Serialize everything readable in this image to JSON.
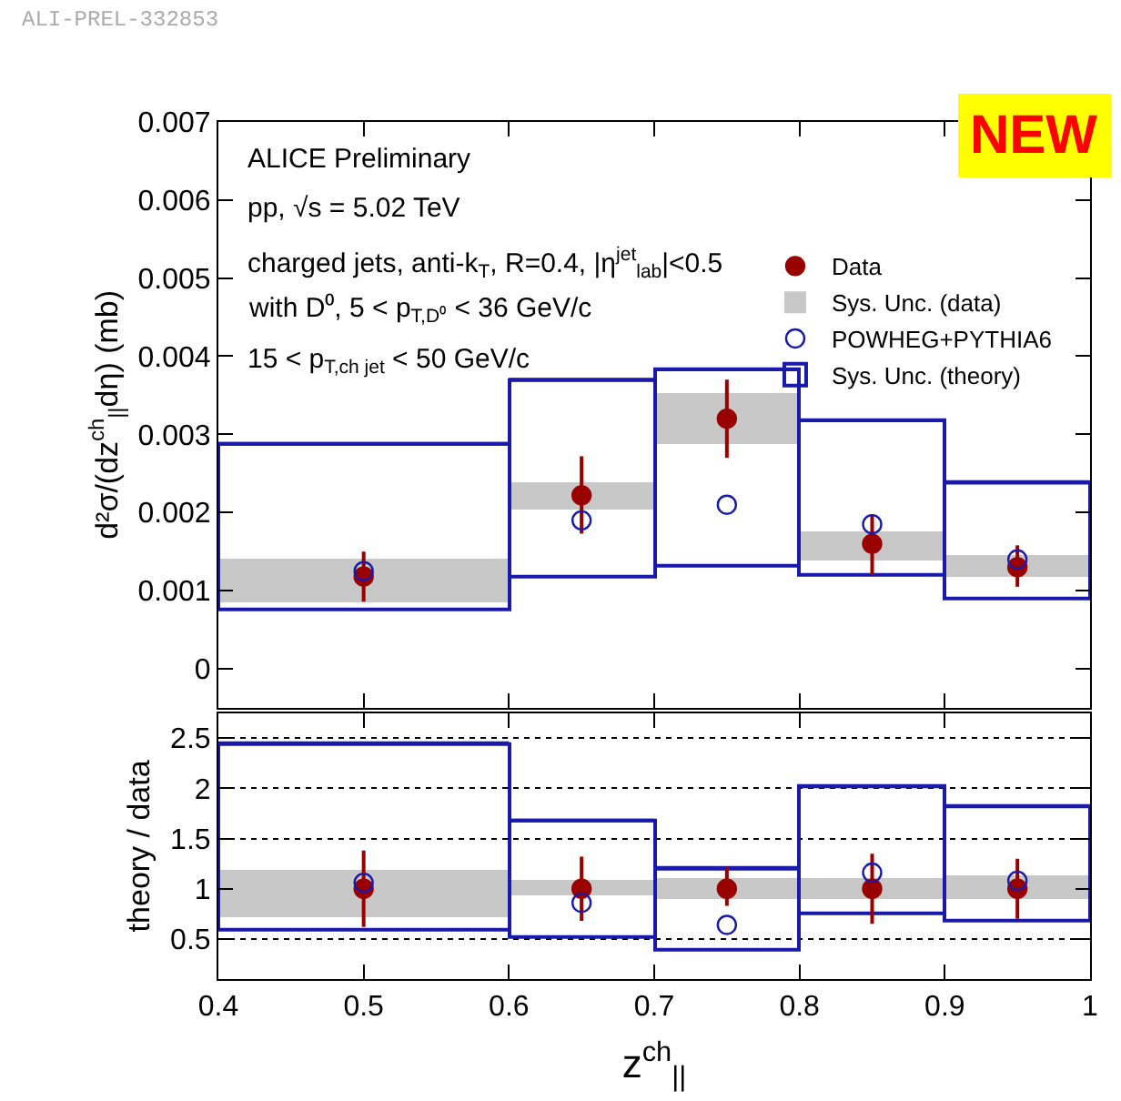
{
  "chart_data": [
    {
      "type": "scatter",
      "ylabel": "d²σ/(dz$^{ch}$$_{||}$dη) (mb)",
      "annotations": [
        "ALI-PREL-332853",
        "NEW",
        "ALICE Preliminary",
        "pp, √s = 5.02 TeV",
        "charged jets, anti-k$_{T}$, R=0.4, |η$^{jet}$$_{lab}$|<0.5",
        "with D⁰, 5 < p$_{T,D⁰}$ < 36 GeV/c",
        "15 < p$_{T,ch jet}$ < 50 GeV/c"
      ],
      "x": [
        0.5,
        0.65,
        0.75,
        0.85,
        0.95
      ],
      "series": [
        {
          "name": "Data",
          "color": "#990000",
          "marker": "circle",
          "values": [
            0.00118,
            0.00222,
            0.0032,
            0.0016,
            0.0013
          ],
          "errors": [
            [
              0.00086,
              0.0015
            ],
            [
              0.00173,
              0.00272
            ],
            [
              0.0027,
              0.0037
            ],
            [
              0.0012,
              0.00198
            ],
            [
              0.00105,
              0.00158
            ]
          ]
        },
        {
          "name": "Sys. Unc. (data)",
          "type": "bar",
          "color": "#c8c8c8",
          "base": [
            0.00085,
            0.00205,
            0.00288,
            0.0014,
            0.00117
          ],
          "values": [
            0.00055,
            0.00033,
            0.00064,
            0.00035,
            0.00028
          ],
          "xerrors": [
            [
              0.4,
              0.6
            ],
            [
              0.6,
              0.7
            ],
            [
              0.7,
              0.8
            ],
            [
              0.8,
              0.9
            ],
            [
              0.9,
              1.0
            ]
          ]
        },
        {
          "name": "POWHEG+PYTHIA6",
          "color": "#1a1aaa",
          "marker": "circle",
          "line_style": "solid",
          "values": [
            0.00125,
            0.0019,
            0.0021,
            0.00185,
            0.0014
          ]
        },
        {
          "name": "Sys. Unc. (theory)",
          "type": "bar",
          "color": "#1a1aaa",
          "line_style": "solid",
          "base": [
            0.00075,
            0.00118,
            0.00133,
            0.0012,
            0.0009
          ],
          "values": [
            0.00213,
            0.00252,
            0.0025,
            0.00198,
            0.00148
          ],
          "xerrors": [
            [
              0.4,
              0.6
            ],
            [
              0.6,
              0.7
            ],
            [
              0.7,
              0.8
            ],
            [
              0.8,
              0.9
            ],
            [
              0.9,
              1.0
            ]
          ]
        }
      ],
      "xlim": [
        0.4,
        1.0
      ],
      "xticks": [
        0.5,
        0.6,
        0.7,
        0.8,
        0.9
      ],
      "ylim": [
        -0.0005,
        0.007
      ],
      "yticks": [
        0,
        0.001,
        0.002,
        0.003,
        0.004,
        0.005,
        0.006,
        0.007
      ],
      "tick_labels": "y",
      "grid": false,
      "legend": "top right"
    },
    {
      "type": "scatter",
      "ylabel": "theory / data",
      "xlabel": "z$^{ch}$$_{||}$",
      "x": [
        0.5,
        0.65,
        0.75,
        0.85,
        0.95
      ],
      "series": [
        {
          "color": "#990000",
          "marker": "circle",
          "values": [
            1,
            1,
            1,
            1,
            1
          ],
          "errors": [
            [
              0.62,
              1.38
            ],
            [
              0.68,
              1.32
            ],
            [
              0.83,
              1.22
            ],
            [
              0.65,
              1.35
            ],
            [
              0.7,
              1.3
            ]
          ]
        },
        {
          "type": "bar",
          "color": "#c8c8c8",
          "base": [
            0.72,
            0.93,
            0.9,
            0.9,
            0.9
          ],
          "values": [
            0.46,
            0.15,
            0.2,
            0.2,
            0.22
          ],
          "xerrors": [
            [
              0.4,
              0.6
            ],
            [
              0.6,
              0.7
            ],
            [
              0.7,
              0.8
            ],
            [
              0.8,
              0.9
            ],
            [
              0.9,
              1.0
            ]
          ]
        },
        {
          "color": "#1a1aaa",
          "marker": "circle",
          "line_style": "solid",
          "values": [
            1.06,
            0.86,
            0.64,
            1.16,
            1.08
          ]
        },
        {
          "type": "bar",
          "color": "#1a1aaa",
          "line_style": "solid",
          "base": [
            0.6,
            0.52,
            0.4,
            0.75,
            0.68
          ],
          "values": [
            1.85,
            1.16,
            0.8,
            1.27,
            1.14
          ],
          "xerrors": [
            [
              0.4,
              0.6
            ],
            [
              0.6,
              0.7
            ],
            [
              0.7,
              0.8
            ],
            [
              0.8,
              0.9
            ],
            [
              0.9,
              1.0
            ]
          ]
        }
      ],
      "xlim": [
        0.4,
        1.0
      ],
      "xticks": [
        0.4,
        0.5,
        0.6,
        0.7,
        0.8,
        0.9,
        {
          "value": 1.0,
          "label": "1"
        }
      ],
      "ylim": [
        0.1,
        2.75
      ],
      "yticks": [
        0.5,
        1,
        1.5,
        2,
        2.5
      ],
      "grid": "y",
      "legend": false
    }
  ]
}
